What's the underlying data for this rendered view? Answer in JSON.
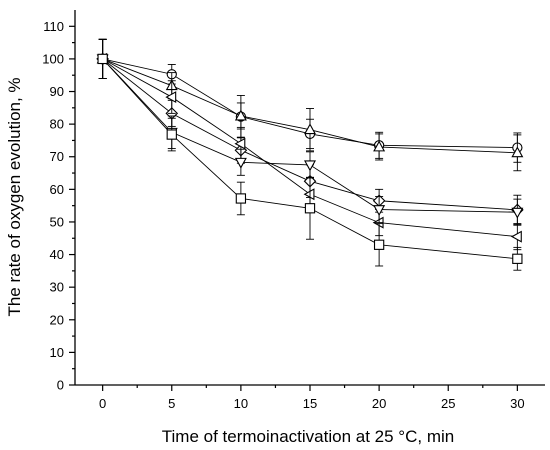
{
  "chart_data": {
    "type": "line",
    "title": "",
    "xlabel": "Time of termoinactivation at 25 °C, min",
    "ylabel": "The rate of oxygen evolution, %",
    "xlim": [
      -2,
      32
    ],
    "ylim": [
      0,
      115
    ],
    "xticks": [
      0,
      5,
      10,
      15,
      20,
      25,
      30
    ],
    "yticks": [
      0,
      10,
      20,
      30,
      40,
      50,
      60,
      70,
      80,
      90,
      100,
      110
    ],
    "x": [
      0,
      5,
      10,
      15,
      20,
      30
    ],
    "grid": false,
    "legend": "none",
    "series": [
      {
        "marker": "circle",
        "values": [
          100,
          95.3,
          82.3,
          77.0,
          73.5,
          72.8
        ],
        "errors": [
          6,
          3,
          6.5,
          4.5,
          4,
          4.5
        ]
      },
      {
        "marker": "triangle-up",
        "values": [
          100,
          91.8,
          82.5,
          78.3,
          73.0,
          71.2
        ],
        "errors": [
          6,
          4,
          4,
          6.5,
          4,
          5.5
        ]
      },
      {
        "marker": "diamond",
        "values": [
          100,
          83.3,
          72.0,
          62.5,
          56.5,
          53.7
        ],
        "errors": [
          6,
          4,
          4,
          5,
          3.5,
          4.5
        ]
      },
      {
        "marker": "triangle-left",
        "values": [
          100,
          88.3,
          74.0,
          58.5,
          49.8,
          45.5
        ],
        "errors": [
          6,
          5,
          5,
          5,
          4,
          4
        ]
      },
      {
        "marker": "triangle-down",
        "values": [
          100,
          77.5,
          68.3,
          67.5,
          53.8,
          53.0
        ],
        "errors": [
          6,
          5,
          4,
          4,
          4,
          4
        ]
      },
      {
        "marker": "square",
        "values": [
          100,
          76.8,
          57.2,
          54.2,
          43.0,
          38.7
        ],
        "errors": [
          6,
          5,
          5,
          9.5,
          6.5,
          3.5
        ]
      }
    ]
  }
}
